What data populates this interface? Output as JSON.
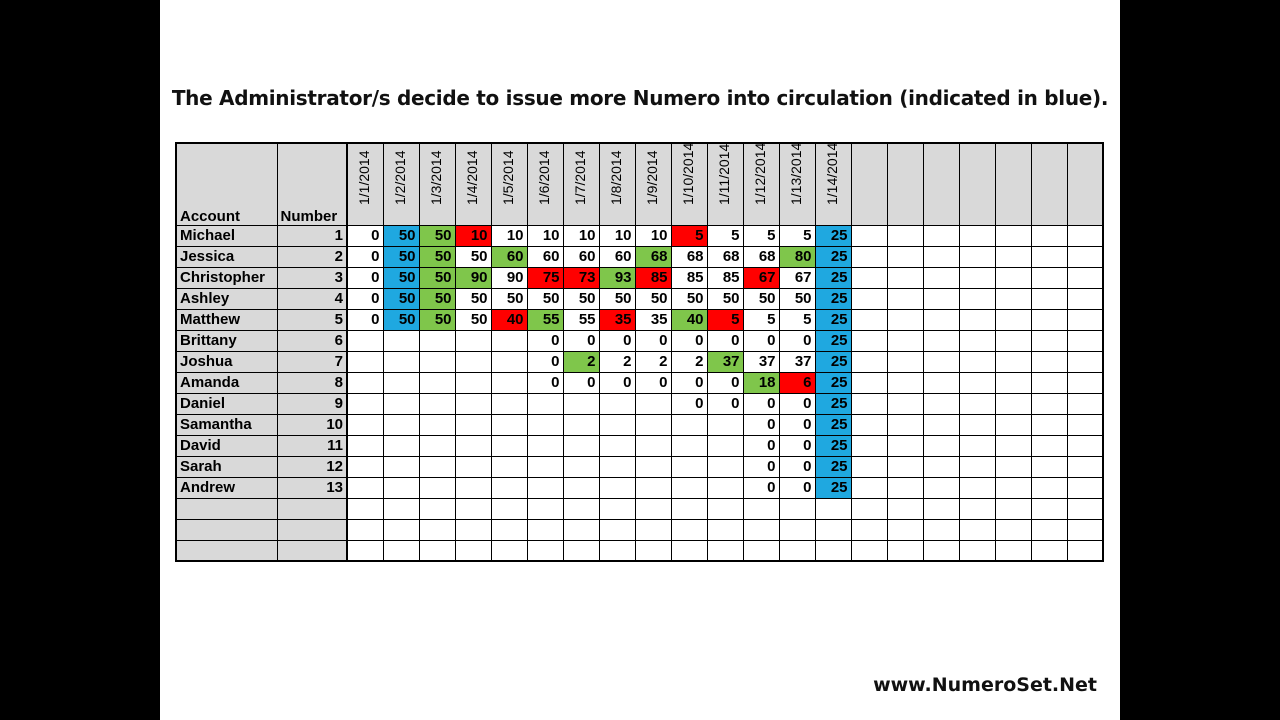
{
  "title": "The Administrator/s decide to issue more Numero into circulation (indicated in blue).",
  "footer": "www.NumeroSet.Net",
  "colors": {
    "blue": "#1fa8e0",
    "green": "#7fc64b",
    "red": "#ff0000",
    "header_gray": "#d9d9d9"
  },
  "table": {
    "col_account": "Account",
    "col_number": "Number",
    "dates": [
      "1/1/2014",
      "1/2/2014",
      "1/3/2014",
      "1/4/2014",
      "1/5/2014",
      "1/6/2014",
      "1/7/2014",
      "1/8/2014",
      "1/9/2014",
      "1/10/2014",
      "1/11/2014",
      "1/12/2014",
      "1/13/2014",
      "1/14/2014",
      "",
      "",
      "",
      "",
      "",
      "",
      ""
    ],
    "rows": [
      {
        "account": "Michael",
        "number": "1",
        "values": [
          "0",
          "50",
          "50",
          "10",
          "10",
          "10",
          "10",
          "10",
          "10",
          "5",
          "5",
          "5",
          "5",
          "25"
        ],
        "colors": [
          "",
          "blue",
          "green",
          "red",
          "",
          "",
          "",
          "",
          "",
          "red",
          "",
          "",
          "",
          "blue"
        ]
      },
      {
        "account": "Jessica",
        "number": "2",
        "values": [
          "0",
          "50",
          "50",
          "50",
          "60",
          "60",
          "60",
          "60",
          "68",
          "68",
          "68",
          "68",
          "80",
          "25"
        ],
        "colors": [
          "",
          "blue",
          "green",
          "",
          "green",
          "",
          "",
          "",
          "green",
          "",
          "",
          "",
          "green",
          "blue"
        ]
      },
      {
        "account": "Christopher",
        "number": "3",
        "values": [
          "0",
          "50",
          "50",
          "90",
          "90",
          "75",
          "73",
          "93",
          "85",
          "85",
          "85",
          "67",
          "67",
          "25"
        ],
        "colors": [
          "",
          "blue",
          "green",
          "green",
          "",
          "red",
          "red",
          "green",
          "red",
          "",
          "",
          "red",
          "",
          "blue"
        ]
      },
      {
        "account": "Ashley",
        "number": "4",
        "values": [
          "0",
          "50",
          "50",
          "50",
          "50",
          "50",
          "50",
          "50",
          "50",
          "50",
          "50",
          "50",
          "50",
          "25"
        ],
        "colors": [
          "",
          "blue",
          "green",
          "",
          "",
          "",
          "",
          "",
          "",
          "",
          "",
          "",
          "",
          "blue"
        ]
      },
      {
        "account": "Matthew",
        "number": "5",
        "values": [
          "0",
          "50",
          "50",
          "50",
          "40",
          "55",
          "55",
          "35",
          "35",
          "40",
          "5",
          "5",
          "5",
          "25"
        ],
        "colors": [
          "",
          "blue",
          "green",
          "",
          "red",
          "green",
          "",
          "red",
          "",
          "green",
          "red",
          "",
          "",
          "blue"
        ]
      },
      {
        "account": "Brittany",
        "number": "6",
        "values": [
          "",
          "",
          "",
          "",
          "",
          "0",
          "0",
          "0",
          "0",
          "0",
          "0",
          "0",
          "0",
          "25"
        ],
        "colors": [
          "",
          "",
          "",
          "",
          "",
          "",
          "",
          "",
          "",
          "",
          "",
          "",
          "",
          "blue"
        ]
      },
      {
        "account": "Joshua",
        "number": "7",
        "values": [
          "",
          "",
          "",
          "",
          "",
          "0",
          "2",
          "2",
          "2",
          "2",
          "37",
          "37",
          "37",
          "25"
        ],
        "colors": [
          "",
          "",
          "",
          "",
          "",
          "",
          "green",
          "",
          "",
          "",
          "green",
          "",
          "",
          "blue"
        ]
      },
      {
        "account": "Amanda",
        "number": "8",
        "values": [
          "",
          "",
          "",
          "",
          "",
          "0",
          "0",
          "0",
          "0",
          "0",
          "0",
          "18",
          "6",
          "25"
        ],
        "colors": [
          "",
          "",
          "",
          "",
          "",
          "",
          "",
          "",
          "",
          "",
          "",
          "green",
          "red",
          "blue"
        ]
      },
      {
        "account": "Daniel",
        "number": "9",
        "values": [
          "",
          "",
          "",
          "",
          "",
          "",
          "",
          "",
          "",
          "0",
          "0",
          "0",
          "0",
          "25"
        ],
        "colors": [
          "",
          "",
          "",
          "",
          "",
          "",
          "",
          "",
          "",
          "",
          "",
          "",
          "",
          "blue"
        ]
      },
      {
        "account": "Samantha",
        "number": "10",
        "values": [
          "",
          "",
          "",
          "",
          "",
          "",
          "",
          "",
          "",
          "",
          "",
          "0",
          "0",
          "25"
        ],
        "colors": [
          "",
          "",
          "",
          "",
          "",
          "",
          "",
          "",
          "",
          "",
          "",
          "",
          "",
          "blue"
        ]
      },
      {
        "account": "David",
        "number": "11",
        "values": [
          "",
          "",
          "",
          "",
          "",
          "",
          "",
          "",
          "",
          "",
          "",
          "0",
          "0",
          "25"
        ],
        "colors": [
          "",
          "",
          "",
          "",
          "",
          "",
          "",
          "",
          "",
          "",
          "",
          "",
          "",
          "blue"
        ]
      },
      {
        "account": "Sarah",
        "number": "12",
        "values": [
          "",
          "",
          "",
          "",
          "",
          "",
          "",
          "",
          "",
          "",
          "",
          "0",
          "0",
          "25"
        ],
        "colors": [
          "",
          "",
          "",
          "",
          "",
          "",
          "",
          "",
          "",
          "",
          "",
          "",
          "",
          "blue"
        ]
      },
      {
        "account": "Andrew",
        "number": "13",
        "values": [
          "",
          "",
          "",
          "",
          "",
          "",
          "",
          "",
          "",
          "",
          "",
          "0",
          "0",
          "25"
        ],
        "colors": [
          "",
          "",
          "",
          "",
          "",
          "",
          "",
          "",
          "",
          "",
          "",
          "",
          "",
          "blue"
        ]
      },
      {
        "account": "",
        "number": "",
        "values": [],
        "colors": []
      },
      {
        "account": "",
        "number": "",
        "values": [],
        "colors": []
      },
      {
        "account": "",
        "number": "",
        "values": [],
        "colors": []
      }
    ]
  }
}
